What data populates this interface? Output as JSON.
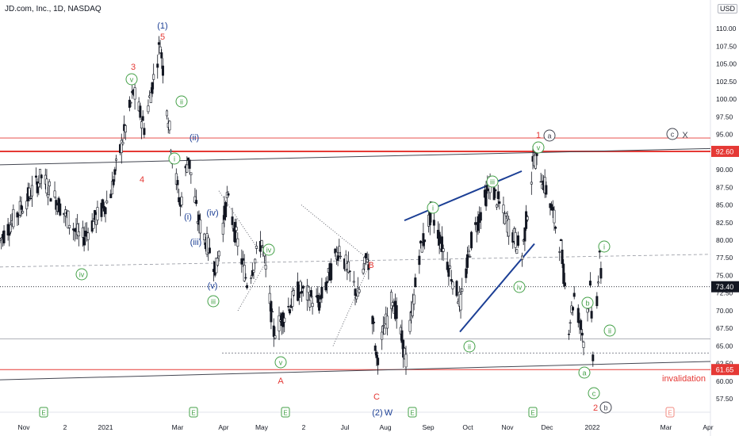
{
  "header": {
    "title": "JD.com, Inc., 1D, NASDAQ",
    "currency": "USD"
  },
  "colors": {
    "bull": "#131722",
    "bear": "#131722",
    "red": "#e53935",
    "green": "#43a047",
    "blue": "#1c3f95",
    "gray": "#787b86"
  },
  "chart_data": {
    "type": "candlestick",
    "title": "JD.com, Inc., 1D, NASDAQ",
    "ylim": [
      55,
      115
    ],
    "y_ticks": [
      57.5,
      60.0,
      62.5,
      65.0,
      67.5,
      70.0,
      72.5,
      75.0,
      77.5,
      80.0,
      82.5,
      85.0,
      87.5,
      90.0,
      92.5,
      95.0,
      97.5,
      100.0,
      102.5,
      105.0,
      107.5,
      110.0
    ],
    "x_ticks": [
      "Nov",
      "2",
      "2021",
      "Mar",
      "Apr",
      "May",
      "2",
      "Jul",
      "Aug",
      "Sep",
      "Oct",
      "Nov",
      "Dec",
      "2022",
      "Mar",
      "Apr"
    ],
    "price_badges": [
      {
        "label": "92.60",
        "value": 92.6,
        "color": "#e53935"
      },
      {
        "label": "73.40",
        "value": 73.4,
        "color": "#131722"
      },
      {
        "label": "61.65",
        "value": 61.65,
        "color": "#e53935"
      }
    ],
    "horizontal_lines": [
      {
        "value": 92.6,
        "label": "92.60",
        "color": "#e53935"
      },
      {
        "value": 61.65,
        "label": "61.65",
        "color": "#e53935"
      }
    ],
    "annotations": [
      "invalidation"
    ],
    "wave_labels": [
      {
        "text": "(1)",
        "color": "blue"
      },
      {
        "text": "5",
        "color": "red"
      },
      {
        "text": "3",
        "color": "red"
      },
      {
        "text": "4",
        "color": "red"
      },
      {
        "text": "v",
        "color": "green"
      },
      {
        "text": "ii",
        "color": "green"
      },
      {
        "text": "i",
        "color": "green"
      },
      {
        "text": "iv",
        "color": "green"
      },
      {
        "text": "(ii)",
        "color": "blue"
      },
      {
        "text": "(i)",
        "color": "blue"
      },
      {
        "text": "(iii)",
        "color": "blue"
      },
      {
        "text": "(iv)",
        "color": "blue"
      },
      {
        "text": "(v)",
        "color": "blue"
      },
      {
        "text": "iii",
        "color": "green"
      },
      {
        "text": "iv",
        "color": "green"
      },
      {
        "text": "v",
        "color": "green"
      },
      {
        "text": "A",
        "color": "red"
      },
      {
        "text": "B",
        "color": "red"
      },
      {
        "text": "C",
        "color": "red"
      },
      {
        "text": "(2)",
        "color": "blue"
      },
      {
        "text": "W",
        "color": "blue"
      },
      {
        "text": "i",
        "color": "green"
      },
      {
        "text": "ii",
        "color": "green"
      },
      {
        "text": "iii",
        "color": "green"
      },
      {
        "text": "iv",
        "color": "green"
      },
      {
        "text": "v",
        "color": "green"
      },
      {
        "text": "1",
        "color": "red"
      },
      {
        "text": "a",
        "color": "gray"
      },
      {
        "text": "c",
        "color": "gray"
      },
      {
        "text": "X",
        "color": "gray"
      },
      {
        "text": "b",
        "color": "green"
      },
      {
        "text": "a",
        "color": "green"
      },
      {
        "text": "c",
        "color": "green"
      },
      {
        "text": "i",
        "color": "green"
      },
      {
        "text": "ii",
        "color": "green"
      },
      {
        "text": "2",
        "color": "red"
      },
      {
        "text": "b",
        "color": "gray"
      }
    ],
    "anchor_points": [
      {
        "date": "2020-10-20",
        "value": 80
      },
      {
        "date": "2020-11-20",
        "value": 89
      },
      {
        "date": "2020-12-20",
        "value": 80
      },
      {
        "date": "2021-01-10",
        "value": 86
      },
      {
        "date": "2021-01-28",
        "value": 101
      },
      {
        "date": "2021-02-05",
        "value": 96
      },
      {
        "date": "2021-02-17",
        "value": 108
      },
      {
        "date": "2021-02-26",
        "value": 92
      },
      {
        "date": "2021-03-04",
        "value": 85
      },
      {
        "date": "2021-03-10",
        "value": 92
      },
      {
        "date": "2021-03-17",
        "value": 83
      },
      {
        "date": "2021-03-31",
        "value": 76
      },
      {
        "date": "2021-04-08",
        "value": 86
      },
      {
        "date": "2021-04-23",
        "value": 74
      },
      {
        "date": "2021-05-04",
        "value": 80
      },
      {
        "date": "2021-05-13",
        "value": 67
      },
      {
        "date": "2021-06-01",
        "value": 73
      },
      {
        "date": "2021-06-16",
        "value": 71
      },
      {
        "date": "2021-07-01",
        "value": 79
      },
      {
        "date": "2021-07-15",
        "value": 72
      },
      {
        "date": "2021-07-22",
        "value": 78
      },
      {
        "date": "2021-07-29",
        "value": 63
      },
      {
        "date": "2021-08-10",
        "value": 72
      },
      {
        "date": "2021-08-20",
        "value": 63
      },
      {
        "date": "2021-08-30",
        "value": 78
      },
      {
        "date": "2021-09-08",
        "value": 84
      },
      {
        "date": "2021-09-30",
        "value": 71
      },
      {
        "date": "2021-10-08",
        "value": 80
      },
      {
        "date": "2021-10-22",
        "value": 88
      },
      {
        "date": "2021-11-05",
        "value": 82
      },
      {
        "date": "2021-11-15",
        "value": 78
      },
      {
        "date": "2021-11-24",
        "value": 92
      },
      {
        "date": "2021-12-05",
        "value": 86
      },
      {
        "date": "2021-12-14",
        "value": 79
      },
      {
        "date": "2021-12-20",
        "value": 68
      },
      {
        "date": "2021-12-24",
        "value": 72
      },
      {
        "date": "2021-12-31",
        "value": 66
      },
      {
        "date": "2022-01-05",
        "value": 73
      },
      {
        "date": "2022-01-07",
        "value": 64
      },
      {
        "date": "2022-01-12",
        "value": 77
      },
      {
        "date": "2022-01-14",
        "value": 73.4
      }
    ]
  }
}
